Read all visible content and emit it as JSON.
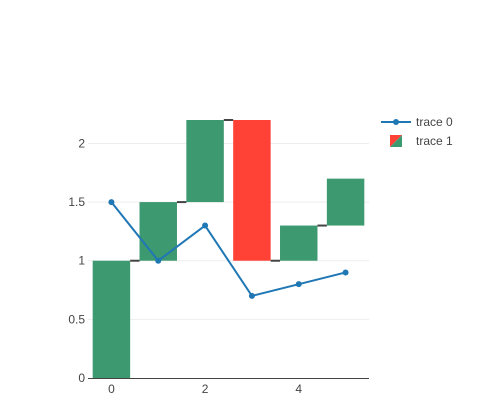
{
  "chart_data": {
    "type": "waterfall+line",
    "title": "",
    "xlabel": "",
    "ylabel": "",
    "xlim": [
      -0.5,
      5.5
    ],
    "ylim": [
      0,
      2.2
    ],
    "x_ticks": [
      0,
      2,
      4
    ],
    "y_ticks": [
      0,
      0.5,
      1,
      1.5,
      2
    ],
    "grid": true,
    "legend_position": "top-right",
    "series": [
      {
        "name": "trace 0",
        "kind": "line",
        "color": "#1f77b4",
        "x": [
          0,
          1,
          2,
          3,
          4,
          5
        ],
        "y": [
          1.5,
          1.0,
          1.3,
          0.7,
          0.8,
          0.9
        ]
      },
      {
        "name": "trace 1",
        "kind": "waterfall",
        "increasing_color": "#3d9970",
        "decreasing_color": "#ff4136",
        "connector_color": "#444444",
        "x": [
          0,
          1,
          2,
          3,
          4,
          5
        ],
        "measure": [
          1,
          0.5,
          0.7,
          -1.2,
          0.3,
          0.4
        ]
      }
    ]
  }
}
